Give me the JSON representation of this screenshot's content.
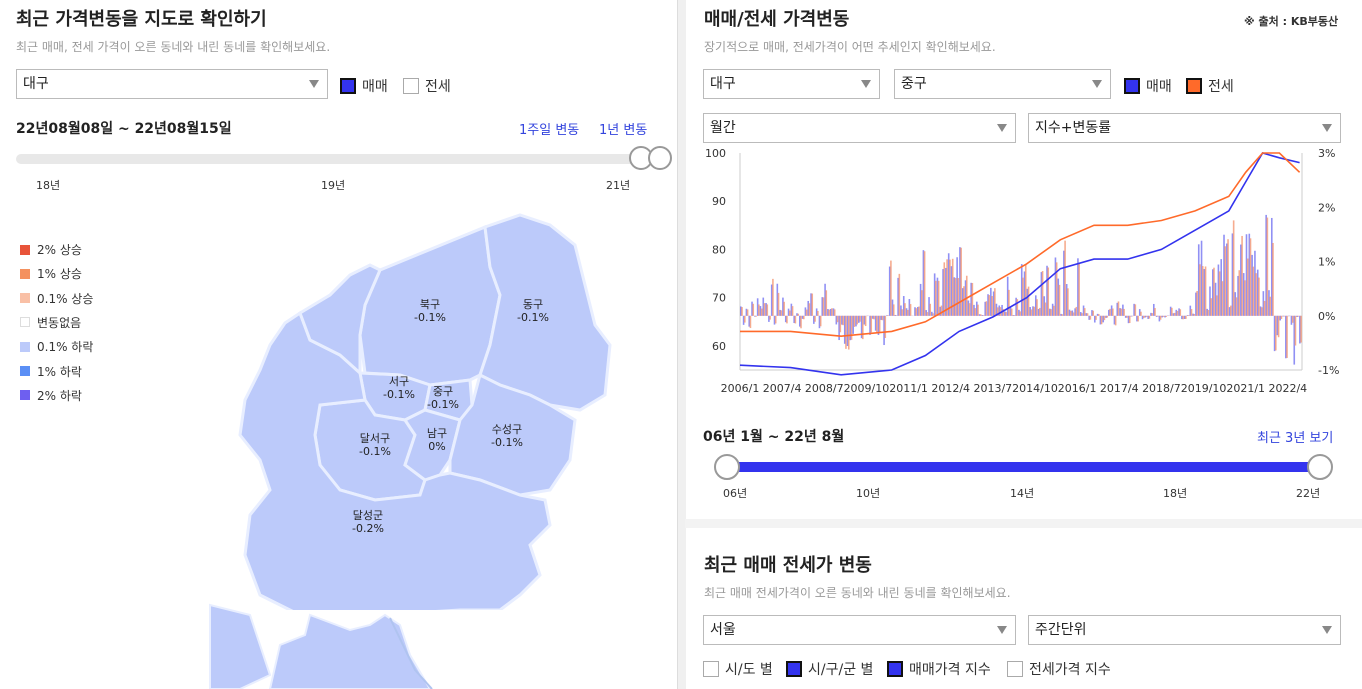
{
  "left": {
    "title": "최근 가격변동을 지도로 확인하기",
    "subtitle": "최근 매매, 전세 가격이 오른 동네와 내린 동네를 확인해보세요.",
    "region_select": "대구",
    "chk_sale": "매매",
    "chk_rent": "전세",
    "date_range": "22년08월08일 ~ 22년08월15일",
    "link_week": "1주일 변동",
    "link_year": "1년 변동",
    "slider_labels": [
      "18년",
      "19년",
      "21년"
    ],
    "legend": [
      {
        "label": "2% 상승",
        "color": "#e8543a"
      },
      {
        "label": "1% 상승",
        "color": "#f4915f"
      },
      {
        "label": "0.1% 상승",
        "color": "#f9c0a6"
      },
      {
        "label": "변동없음",
        "color": "#ffffff"
      },
      {
        "label": "0.1% 하락",
        "color": "#bccafa"
      },
      {
        "label": "1% 하락",
        "color": "#5b8ff5"
      },
      {
        "label": "2% 하락",
        "color": "#6e5ff0"
      }
    ],
    "regions": [
      {
        "name": "북구",
        "value": "-0.1%"
      },
      {
        "name": "동구",
        "value": "-0.1%"
      },
      {
        "name": "서구",
        "value": "-0.1%"
      },
      {
        "name": "중구",
        "value": "-0.1%"
      },
      {
        "name": "달서구",
        "value": "-0.1%"
      },
      {
        "name": "남구",
        "value": "0%"
      },
      {
        "name": "수성구",
        "value": "-0.1%"
      },
      {
        "name": "달성군",
        "value": "-0.2%"
      }
    ]
  },
  "right": {
    "title": "매매/전세 가격변동",
    "source": "※ 출처 : KB부동산",
    "subtitle": "장기적으로 매매, 전세가격이 어떤 추세인지 확인해보세요.",
    "select_city": "대구",
    "select_district": "중구",
    "chk_sale": "매매",
    "chk_rent": "전세",
    "select_period": "월간",
    "select_metric": "지수+변동률",
    "range_text": "06년 1월 ~ 22년 8월",
    "recent_link": "최근 3년 보기",
    "range_labels": [
      "06년",
      "10년",
      "14년",
      "18년",
      "22년"
    ],
    "bottom_title": "최근 매매 전세가 변동",
    "bottom_subtitle": "최근 매매 전세가격이 오른 동네와 내린 동네를 확인해보세요.",
    "bottom_city": "서울",
    "bottom_unit": "주간단위",
    "bottom_chk": [
      "시/도 별",
      "시/구/군 별",
      "매매가격 지수",
      "전세가격 지수"
    ]
  },
  "colors": {
    "sale": "#3333ee",
    "rent": "#ff6a2a",
    "map": "#bccafa"
  },
  "chart_data": {
    "type": "line",
    "x_ticks": [
      "2006/1",
      "2007/4",
      "2008/7",
      "2009/10",
      "2011/1",
      "2012/4",
      "2013/7",
      "2014/10",
      "2016/1",
      "2017/4",
      "2018/7",
      "2019/10",
      "2021/1",
      "2022/4"
    ],
    "y_left_ticks": [
      "100",
      "90",
      "80",
      "70",
      "60"
    ],
    "y_right_ticks": [
      "3%",
      "2%",
      "1%",
      "0%",
      "-1%"
    ],
    "ylim_left": [
      55,
      100
    ],
    "ylim_right": [
      -1,
      3
    ],
    "series": [
      {
        "name": "매매",
        "x": [
          2006.0,
          2007.5,
          2009.0,
          2010.5,
          2011.5,
          2012.5,
          2013.5,
          2014.5,
          2015.5,
          2016.5,
          2017.5,
          2018.5,
          2019.5,
          2020.5,
          2021.0,
          2021.5,
          2022.0,
          2022.6
        ],
        "values": [
          56,
          55.5,
          54,
          55,
          58,
          63,
          66,
          70,
          76,
          78,
          78,
          80,
          84,
          88,
          94,
          100,
          99,
          98
        ]
      },
      {
        "name": "전세",
        "x": [
          2006.0,
          2007.5,
          2009.0,
          2010.5,
          2011.5,
          2012.5,
          2013.5,
          2014.5,
          2015.5,
          2016.5,
          2017.5,
          2018.5,
          2019.5,
          2020.5,
          2021.0,
          2021.5,
          2022.0,
          2022.6
        ],
        "values": [
          63,
          63,
          62,
          63,
          65,
          69,
          73,
          77,
          82,
          85,
          85,
          86,
          88,
          91,
          96,
          100,
          100,
          96
        ]
      }
    ]
  }
}
